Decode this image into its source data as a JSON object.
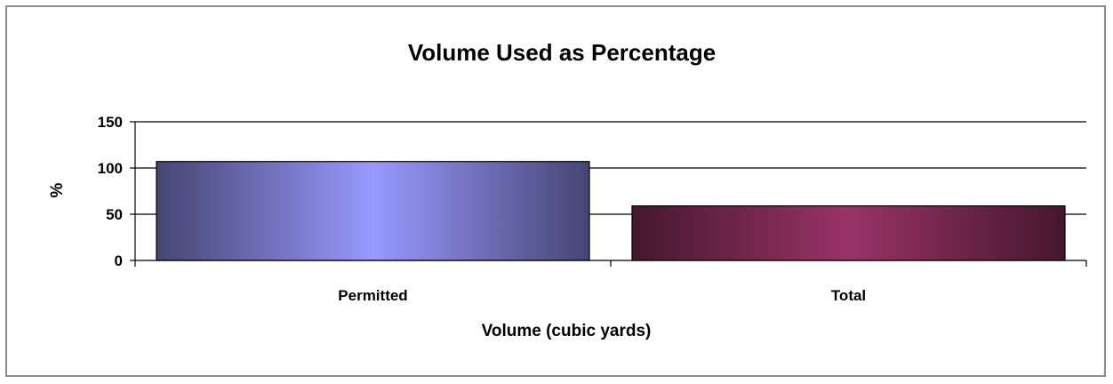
{
  "chart_data": {
    "type": "bar",
    "title": "Volume Used as Percentage",
    "xlabel": "Volume (cubic yards)",
    "ylabel": "%",
    "categories": [
      "Permitted",
      "Total"
    ],
    "values": [
      107,
      59
    ],
    "ylim": [
      0,
      150
    ],
    "yticks": [
      0,
      50,
      100,
      150
    ],
    "grid": true,
    "legend": "none",
    "colors": [
      "#9999ff",
      "#993366"
    ]
  }
}
